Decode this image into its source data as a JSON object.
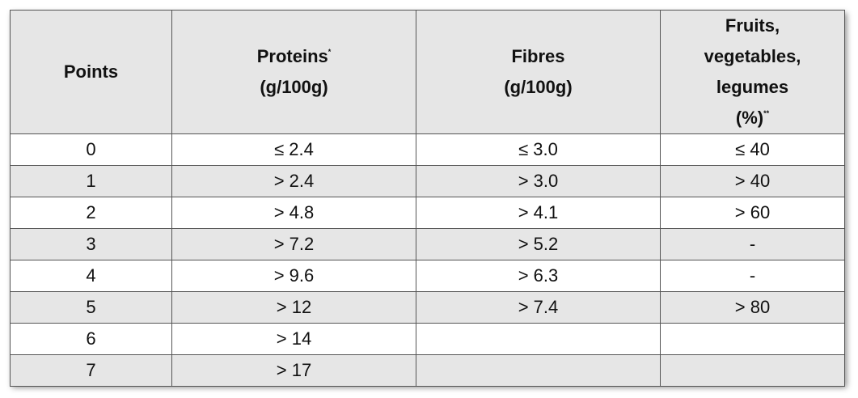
{
  "table": {
    "headers": {
      "points": "Points",
      "proteins_line1": "Proteins",
      "proteins_mark": "*",
      "proteins_line2": "(g/100g)",
      "fibres_line1": "Fibres",
      "fibres_line2": "(g/100g)",
      "fvl_line1": "Fruits,",
      "fvl_line2": "vegetables,",
      "fvl_line3": "legumes",
      "fvl_line4": "(%)",
      "fvl_mark": "**"
    },
    "rows": [
      {
        "points": "0",
        "proteins": "≤ 2.4",
        "fibres": "≤ 3.0",
        "fvl": "≤ 40"
      },
      {
        "points": "1",
        "proteins": "> 2.4",
        "fibres": "> 3.0",
        "fvl": "> 40"
      },
      {
        "points": "2",
        "proteins": "> 4.8",
        "fibres": "> 4.1",
        "fvl": "> 60"
      },
      {
        "points": "3",
        "proteins": "> 7.2",
        "fibres": "> 5.2",
        "fvl": "-"
      },
      {
        "points": "4",
        "proteins": "> 9.6",
        "fibres": "> 6.3",
        "fvl": "-"
      },
      {
        "points": "5",
        "proteins": "> 12",
        "fibres": "> 7.4",
        "fvl": "> 80"
      },
      {
        "points": "6",
        "proteins": "> 14",
        "fibres": "",
        "fvl": ""
      },
      {
        "points": "7",
        "proteins": "> 17",
        "fibres": "",
        "fvl": ""
      }
    ]
  }
}
